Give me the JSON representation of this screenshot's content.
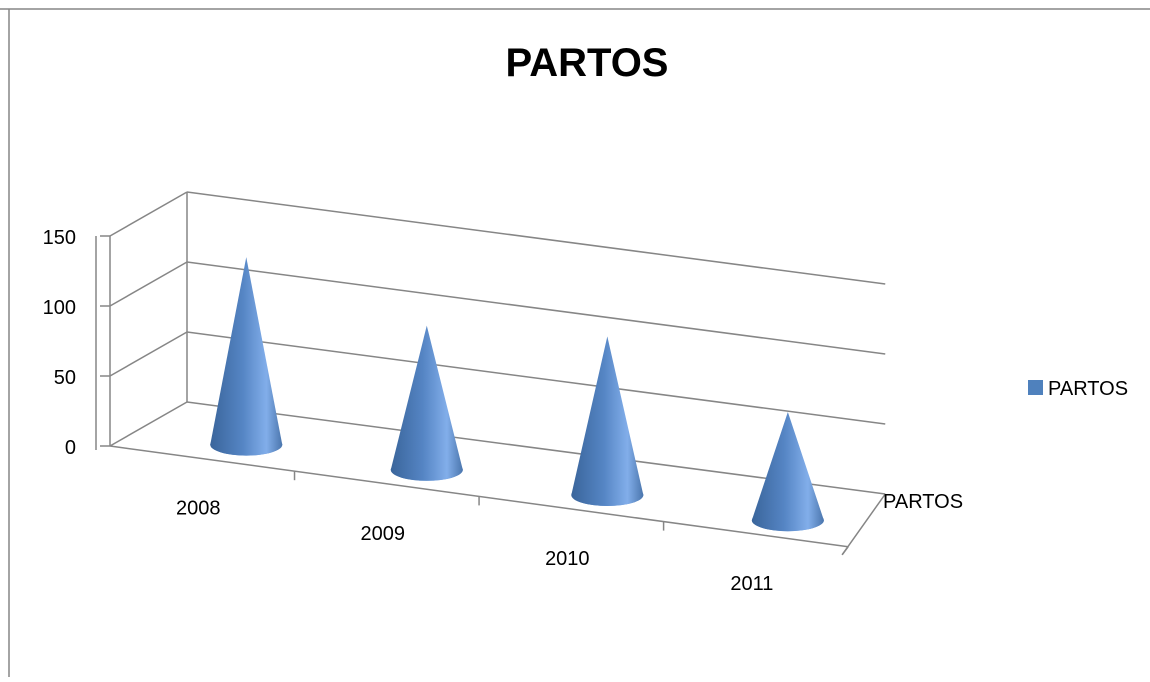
{
  "chart_data": {
    "type": "bar",
    "title": "PARTOS",
    "categories": [
      "2008",
      "2009",
      "2010",
      "2011"
    ],
    "series": [
      {
        "name": "PARTOS",
        "values": [
          130,
          100,
          110,
          75
        ]
      }
    ],
    "depth_axis_label": "PARTOS",
    "yticks": [
      "0",
      "50",
      "100",
      "150"
    ],
    "ylim": [
      0,
      150
    ],
    "grid": true,
    "legend": "right",
    "colors": {
      "series": "#4f81bd",
      "grid": "#868686",
      "frame": "#868686"
    },
    "marker": "cone"
  }
}
